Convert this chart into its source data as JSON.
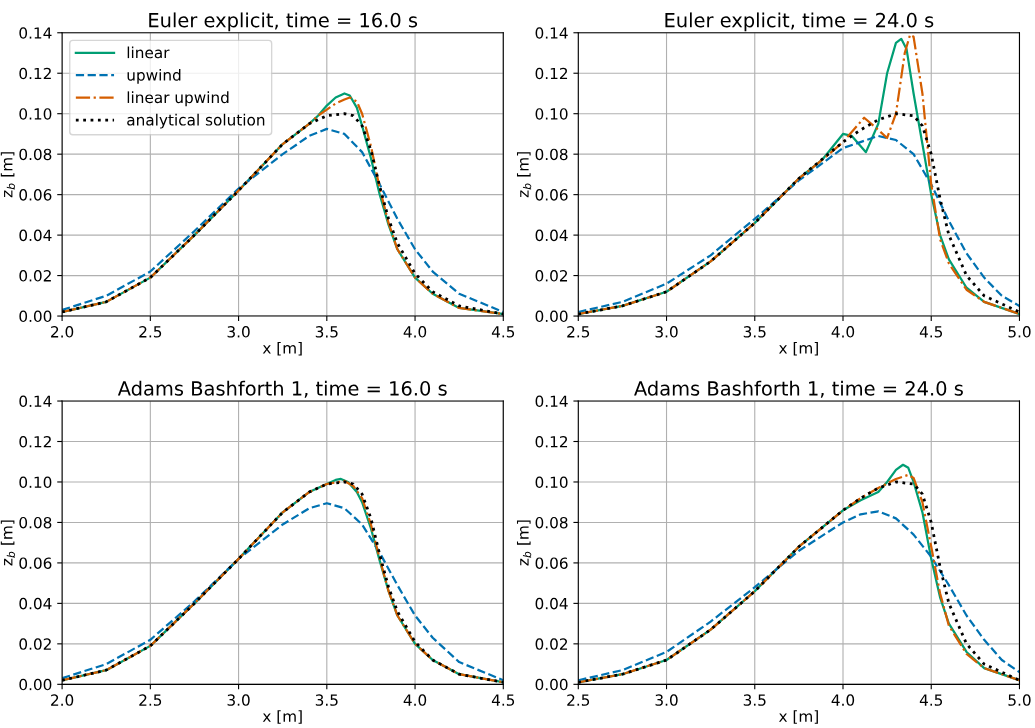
{
  "chart_data": [
    {
      "type": "line",
      "title": "Euler explicit, time = 16.0 s",
      "xlabel": "x [m]",
      "ylabel": "z$_{b}$ [m]",
      "xlim": [
        2.0,
        4.5
      ],
      "ylim": [
        0,
        0.14
      ],
      "xticks": [
        {
          "value": 2.0,
          "label": "2.0"
        },
        {
          "value": 2.5,
          "label": "2.5"
        },
        {
          "value": 3.0,
          "label": "3.0"
        },
        {
          "value": 3.5,
          "label": "3.5"
        },
        {
          "value": 4.0,
          "label": "4.0"
        },
        {
          "value": 4.5,
          "label": "4.5"
        }
      ],
      "yticks": [
        {
          "value": 0,
          "label": "0.00"
        },
        {
          "value": 0.02,
          "label": "0.02"
        },
        {
          "value": 0.04,
          "label": "0.04"
        },
        {
          "value": 0.06,
          "label": "0.06"
        },
        {
          "value": 0.08,
          "label": "0.08"
        },
        {
          "value": 0.1,
          "label": "0.10"
        },
        {
          "value": 0.12,
          "label": "0.12"
        },
        {
          "value": 0.14,
          "label": "0.14"
        }
      ],
      "grid": true,
      "legend": "top left",
      "series": [
        {
          "name": "linear",
          "color": "#009e73",
          "line_style": "solid",
          "x": [
            2.0,
            2.25,
            2.5,
            2.75,
            3.0,
            3.25,
            3.4,
            3.45,
            3.5,
            3.55,
            3.6,
            3.63,
            3.67,
            3.7,
            3.75,
            3.8,
            3.85,
            3.9,
            4.0,
            4.1,
            4.25,
            4.5
          ],
          "values": [
            0.002,
            0.007,
            0.019,
            0.04,
            0.062,
            0.085,
            0.095,
            0.099,
            0.104,
            0.108,
            0.11,
            0.109,
            0.103,
            0.094,
            0.078,
            0.06,
            0.045,
            0.033,
            0.019,
            0.011,
            0.004,
            0.001
          ]
        },
        {
          "name": "upwind",
          "color": "#0072b2",
          "line_style": "dashed",
          "x": [
            2.0,
            2.25,
            2.5,
            2.75,
            3.0,
            3.25,
            3.4,
            3.5,
            3.6,
            3.7,
            3.8,
            3.9,
            4.0,
            4.1,
            4.25,
            4.5
          ],
          "values": [
            0.003,
            0.01,
            0.022,
            0.042,
            0.063,
            0.08,
            0.089,
            0.0925,
            0.09,
            0.081,
            0.065,
            0.048,
            0.033,
            0.022,
            0.011,
            0.002
          ]
        },
        {
          "name": "linear upwind",
          "color": "#d55e00",
          "line_style": "dashdot",
          "x": [
            2.0,
            2.25,
            2.5,
            2.75,
            3.0,
            3.25,
            3.4,
            3.45,
            3.5,
            3.55,
            3.6,
            3.63,
            3.67,
            3.7,
            3.75,
            3.8,
            3.85,
            3.9,
            4.0,
            4.1,
            4.25,
            4.5
          ],
          "values": [
            0.002,
            0.007,
            0.019,
            0.04,
            0.062,
            0.085,
            0.095,
            0.099,
            0.102,
            0.105,
            0.107,
            0.108,
            0.106,
            0.1,
            0.084,
            0.063,
            0.046,
            0.033,
            0.019,
            0.011,
            0.004,
            0.001
          ]
        },
        {
          "name": "analytical solution",
          "color": "#000000",
          "line_style": "dotted",
          "x": [
            2.0,
            2.25,
            2.5,
            2.75,
            3.0,
            3.25,
            3.4,
            3.5,
            3.6,
            3.65,
            3.7,
            3.75,
            3.8,
            3.85,
            3.9,
            4.0,
            4.1,
            4.25,
            4.5
          ],
          "values": [
            0.002,
            0.007,
            0.019,
            0.04,
            0.062,
            0.085,
            0.095,
            0.099,
            0.1,
            0.099,
            0.094,
            0.082,
            0.064,
            0.048,
            0.036,
            0.021,
            0.012,
            0.005,
            0.001
          ]
        }
      ]
    },
    {
      "type": "line",
      "title": "Euler explicit, time = 24.0 s",
      "xlabel": "x [m]",
      "ylabel": "z$_{b}$ [m]",
      "xlim": [
        2.5,
        5.0
      ],
      "ylim": [
        0,
        0.14
      ],
      "xticks": [
        {
          "value": 2.5,
          "label": "2.5"
        },
        {
          "value": 3.0,
          "label": "3.0"
        },
        {
          "value": 3.5,
          "label": "3.5"
        },
        {
          "value": 4.0,
          "label": "4.0"
        },
        {
          "value": 4.5,
          "label": "4.5"
        },
        {
          "value": 5.0,
          "label": "5.0"
        }
      ],
      "yticks": [
        {
          "value": 0,
          "label": "0.00"
        },
        {
          "value": 0.02,
          "label": "0.02"
        },
        {
          "value": 0.04,
          "label": "0.04"
        },
        {
          "value": 0.06,
          "label": "0.06"
        },
        {
          "value": 0.08,
          "label": "0.08"
        },
        {
          "value": 0.1,
          "label": "0.10"
        },
        {
          "value": 0.12,
          "label": "0.12"
        },
        {
          "value": 0.14,
          "label": "0.14"
        }
      ],
      "grid": true,
      "series": [
        {
          "color": "#009e73",
          "line_style": "solid",
          "x": [
            2.5,
            2.75,
            3.0,
            3.25,
            3.5,
            3.75,
            3.88,
            4.0,
            4.05,
            4.13,
            4.2,
            4.25,
            4.3,
            4.33,
            4.36,
            4.4,
            4.45,
            4.5,
            4.55,
            4.6,
            4.7,
            4.8,
            5.0
          ],
          "values": [
            0.001,
            0.005,
            0.012,
            0.027,
            0.046,
            0.068,
            0.077,
            0.09,
            0.089,
            0.081,
            0.095,
            0.12,
            0.135,
            0.137,
            0.132,
            0.11,
            0.085,
            0.06,
            0.04,
            0.028,
            0.014,
            0.007,
            0.001
          ]
        },
        {
          "color": "#0072b2",
          "line_style": "dashed",
          "x": [
            2.5,
            2.75,
            3.0,
            3.25,
            3.5,
            3.75,
            4.0,
            4.2,
            4.3,
            4.4,
            4.5,
            4.6,
            4.7,
            4.8,
            4.9,
            5.0
          ],
          "values": [
            0.002,
            0.007,
            0.016,
            0.03,
            0.048,
            0.067,
            0.083,
            0.089,
            0.087,
            0.08,
            0.065,
            0.047,
            0.031,
            0.019,
            0.01,
            0.005
          ]
        },
        {
          "color": "#d55e00",
          "line_style": "dashdot",
          "x": [
            2.5,
            2.75,
            3.0,
            3.25,
            3.5,
            3.75,
            3.88,
            4.0,
            4.12,
            4.2,
            4.25,
            4.3,
            4.35,
            4.38,
            4.4,
            4.45,
            4.5,
            4.55,
            4.6,
            4.7,
            4.8,
            5.0
          ],
          "values": [
            0.001,
            0.005,
            0.012,
            0.027,
            0.046,
            0.068,
            0.077,
            0.086,
            0.098,
            0.092,
            0.088,
            0.1,
            0.13,
            0.139,
            0.138,
            0.11,
            0.065,
            0.038,
            0.026,
            0.013,
            0.007,
            0.001
          ]
        },
        {
          "color": "#000000",
          "line_style": "dotted",
          "x": [
            2.5,
            2.75,
            3.0,
            3.25,
            3.5,
            3.75,
            4.0,
            4.1,
            4.2,
            4.3,
            4.4,
            4.45,
            4.5,
            4.55,
            4.6,
            4.7,
            4.8,
            5.0
          ],
          "values": [
            0.001,
            0.005,
            0.012,
            0.027,
            0.046,
            0.068,
            0.086,
            0.092,
            0.097,
            0.1,
            0.099,
            0.094,
            0.08,
            0.058,
            0.04,
            0.02,
            0.01,
            0.002
          ]
        }
      ]
    },
    {
      "type": "line",
      "title": "Adams Bashforth 1, time = 16.0 s",
      "xlabel": "x [m]",
      "ylabel": "z$_{b}$ [m]",
      "xlim": [
        2.0,
        4.5
      ],
      "ylim": [
        0,
        0.14
      ],
      "xticks": [
        {
          "value": 2.0,
          "label": "2.0"
        },
        {
          "value": 2.5,
          "label": "2.5"
        },
        {
          "value": 3.0,
          "label": "3.0"
        },
        {
          "value": 3.5,
          "label": "3.5"
        },
        {
          "value": 4.0,
          "label": "4.0"
        },
        {
          "value": 4.5,
          "label": "4.5"
        }
      ],
      "yticks": [
        {
          "value": 0,
          "label": "0.00"
        },
        {
          "value": 0.02,
          "label": "0.02"
        },
        {
          "value": 0.04,
          "label": "0.04"
        },
        {
          "value": 0.06,
          "label": "0.06"
        },
        {
          "value": 0.08,
          "label": "0.08"
        },
        {
          "value": 0.1,
          "label": "0.10"
        },
        {
          "value": 0.12,
          "label": "0.12"
        },
        {
          "value": 0.14,
          "label": "0.14"
        }
      ],
      "grid": true,
      "series": [
        {
          "color": "#009e73",
          "line_style": "solid",
          "x": [
            2.0,
            2.25,
            2.5,
            2.75,
            3.0,
            3.25,
            3.4,
            3.5,
            3.55,
            3.58,
            3.62,
            3.67,
            3.7,
            3.75,
            3.8,
            3.85,
            3.9,
            4.0,
            4.1,
            4.25,
            4.5
          ],
          "values": [
            0.002,
            0.007,
            0.019,
            0.04,
            0.062,
            0.085,
            0.095,
            0.099,
            0.101,
            0.1015,
            0.1,
            0.095,
            0.09,
            0.077,
            0.061,
            0.046,
            0.034,
            0.02,
            0.012,
            0.005,
            0.001
          ]
        },
        {
          "color": "#0072b2",
          "line_style": "dashed",
          "x": [
            2.0,
            2.25,
            2.5,
            2.75,
            3.0,
            3.25,
            3.4,
            3.5,
            3.6,
            3.7,
            3.8,
            3.9,
            4.0,
            4.1,
            4.25,
            4.5
          ],
          "values": [
            0.003,
            0.01,
            0.022,
            0.041,
            0.062,
            0.079,
            0.087,
            0.0895,
            0.087,
            0.079,
            0.065,
            0.049,
            0.034,
            0.023,
            0.011,
            0.002
          ]
        },
        {
          "color": "#d55e00",
          "line_style": "dashdot",
          "x": [
            2.0,
            2.25,
            2.5,
            2.75,
            3.0,
            3.25,
            3.4,
            3.5,
            3.6,
            3.65,
            3.7,
            3.75,
            3.8,
            3.85,
            3.9,
            4.0,
            4.1,
            4.25,
            4.5
          ],
          "values": [
            0.002,
            0.007,
            0.019,
            0.04,
            0.062,
            0.085,
            0.095,
            0.099,
            0.1005,
            0.098,
            0.092,
            0.079,
            0.062,
            0.046,
            0.034,
            0.02,
            0.012,
            0.005,
            0.001
          ]
        },
        {
          "color": "#000000",
          "line_style": "dotted",
          "x": [
            2.0,
            2.25,
            2.5,
            2.75,
            3.0,
            3.25,
            3.4,
            3.5,
            3.6,
            3.65,
            3.7,
            3.75,
            3.8,
            3.85,
            3.9,
            4.0,
            4.1,
            4.25,
            4.5
          ],
          "values": [
            0.002,
            0.007,
            0.019,
            0.04,
            0.062,
            0.085,
            0.095,
            0.099,
            0.1,
            0.099,
            0.094,
            0.082,
            0.064,
            0.048,
            0.036,
            0.021,
            0.012,
            0.005,
            0.001
          ]
        }
      ]
    },
    {
      "type": "line",
      "title": "Adams Bashforth 1, time = 24.0 s",
      "xlabel": "x [m]",
      "ylabel": "z$_{b}$ [m]",
      "xlim": [
        2.5,
        5.0
      ],
      "ylim": [
        0,
        0.14
      ],
      "xticks": [
        {
          "value": 2.5,
          "label": "2.5"
        },
        {
          "value": 3.0,
          "label": "3.0"
        },
        {
          "value": 3.5,
          "label": "3.5"
        },
        {
          "value": 4.0,
          "label": "4.0"
        },
        {
          "value": 4.5,
          "label": "4.5"
        },
        {
          "value": 5.0,
          "label": "5.0"
        }
      ],
      "yticks": [
        {
          "value": 0,
          "label": "0.00"
        },
        {
          "value": 0.02,
          "label": "0.02"
        },
        {
          "value": 0.04,
          "label": "0.04"
        },
        {
          "value": 0.06,
          "label": "0.06"
        },
        {
          "value": 0.08,
          "label": "0.08"
        },
        {
          "value": 0.1,
          "label": "0.10"
        },
        {
          "value": 0.12,
          "label": "0.12"
        },
        {
          "value": 0.14,
          "label": "0.14"
        }
      ],
      "grid": true,
      "series": [
        {
          "color": "#009e73",
          "line_style": "solid",
          "x": [
            2.5,
            2.75,
            3.0,
            3.25,
            3.5,
            3.75,
            4.0,
            4.1,
            4.2,
            4.25,
            4.3,
            4.34,
            4.37,
            4.4,
            4.45,
            4.5,
            4.55,
            4.6,
            4.7,
            4.8,
            5.0
          ],
          "values": [
            0.001,
            0.005,
            0.012,
            0.027,
            0.046,
            0.068,
            0.086,
            0.091,
            0.095,
            0.1,
            0.106,
            0.1085,
            0.107,
            0.1,
            0.085,
            0.062,
            0.043,
            0.03,
            0.016,
            0.008,
            0.002
          ]
        },
        {
          "color": "#0072b2",
          "line_style": "dashed",
          "x": [
            2.5,
            2.75,
            3.0,
            3.25,
            3.5,
            3.75,
            4.0,
            4.1,
            4.2,
            4.3,
            4.4,
            4.5,
            4.6,
            4.7,
            4.8,
            4.9,
            5.0
          ],
          "values": [
            0.002,
            0.007,
            0.016,
            0.031,
            0.048,
            0.066,
            0.08,
            0.084,
            0.0855,
            0.082,
            0.074,
            0.063,
            0.049,
            0.034,
            0.022,
            0.012,
            0.006
          ]
        },
        {
          "color": "#d55e00",
          "line_style": "dashdot",
          "x": [
            2.5,
            2.75,
            3.0,
            3.25,
            3.5,
            3.75,
            4.0,
            4.1,
            4.2,
            4.3,
            4.37,
            4.4,
            4.45,
            4.5,
            4.55,
            4.6,
            4.7,
            4.8,
            5.0
          ],
          "values": [
            0.001,
            0.005,
            0.012,
            0.027,
            0.046,
            0.068,
            0.086,
            0.092,
            0.097,
            0.1015,
            0.1035,
            0.102,
            0.09,
            0.068,
            0.045,
            0.029,
            0.015,
            0.008,
            0.002
          ]
        },
        {
          "color": "#000000",
          "line_style": "dotted",
          "x": [
            2.5,
            2.75,
            3.0,
            3.25,
            3.5,
            3.75,
            4.0,
            4.1,
            4.2,
            4.3,
            4.4,
            4.45,
            4.5,
            4.55,
            4.6,
            4.7,
            4.8,
            5.0
          ],
          "values": [
            0.001,
            0.005,
            0.012,
            0.027,
            0.046,
            0.068,
            0.086,
            0.092,
            0.097,
            0.1,
            0.099,
            0.094,
            0.08,
            0.058,
            0.04,
            0.02,
            0.01,
            0.002
          ]
        }
      ]
    }
  ]
}
